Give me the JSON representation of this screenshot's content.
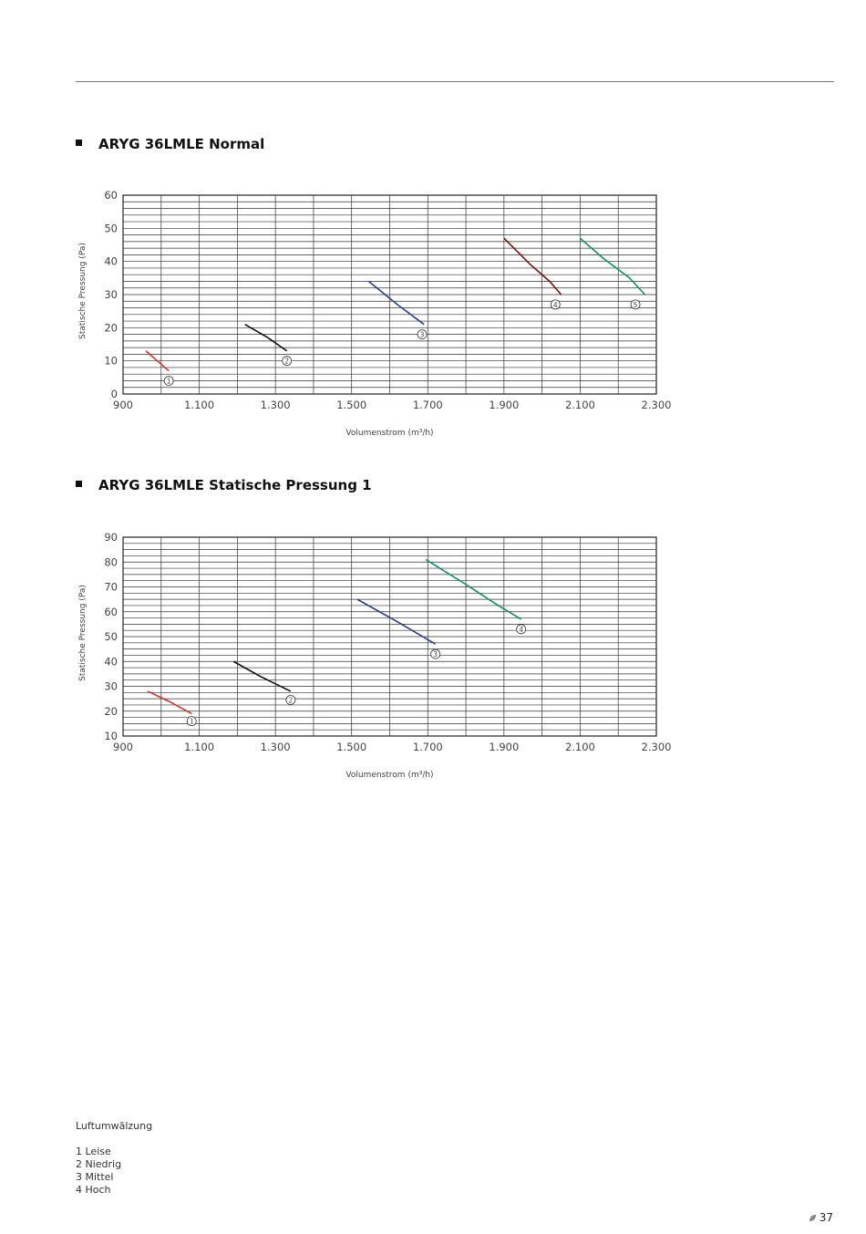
{
  "page": {
    "number": "37",
    "leaf_icon": "leaf-icon"
  },
  "headings": [
    "ARYG 36LMLE Normal",
    "ARYG 36LMLE Statische Pressung 1"
  ],
  "legend": {
    "title": "Luftumwälzung",
    "items": [
      "1 Leise",
      "2 Niedrig",
      "3 Mittel",
      "4 Hoch"
    ]
  },
  "chart_data": [
    {
      "type": "line",
      "title": "ARYG 36LMLE Normal",
      "xlabel": "Volumenstrom (m³/h)",
      "ylabel": "Statische Pressung (Pa)",
      "xlim": [
        900,
        2300
      ],
      "ylim": [
        0,
        60
      ],
      "x_ticks": [
        900,
        1100,
        1300,
        1500,
        1700,
        1900,
        2100,
        2300
      ],
      "x_tick_labels": [
        "900",
        "1.100",
        "1.300",
        "1.500",
        "1.700",
        "1.900",
        "2.100",
        "2.300"
      ],
      "y_ticks": [
        0,
        10,
        20,
        30,
        40,
        50,
        60
      ],
      "y_tick_labels": [
        "0",
        "10",
        "20",
        "30",
        "40",
        "50",
        "60"
      ],
      "y_minor_step": 2,
      "x_grid_step": 100,
      "grid": true,
      "series": [
        {
          "marker": "1",
          "color": "#d9302a",
          "points": [
            [
              960,
              13
            ],
            [
              990,
              10
            ],
            [
              1020,
              7
            ]
          ],
          "label_at": [
            1020,
            4
          ]
        },
        {
          "marker": "2",
          "color": "#111111",
          "points": [
            [
              1220,
              21
            ],
            [
              1280,
              17
            ],
            [
              1330,
              13
            ]
          ],
          "label_at": [
            1330,
            10
          ]
        },
        {
          "marker": "3",
          "color": "#283f8f",
          "points": [
            [
              1545,
              34
            ],
            [
              1620,
              27
            ],
            [
              1690,
              21
            ]
          ],
          "label_at": [
            1685,
            18
          ]
        },
        {
          "marker": "4",
          "color": "#7a1010",
          "points": [
            [
              1900,
              47
            ],
            [
              1970,
              39
            ],
            [
              2020,
              34
            ],
            [
              2050,
              30
            ]
          ],
          "label_at": [
            2035,
            27
          ]
        },
        {
          "marker": "5",
          "color": "#0f9068",
          "points": [
            [
              2100,
              47
            ],
            [
              2160,
              41
            ],
            [
              2230,
              35
            ],
            [
              2270,
              30
            ]
          ],
          "label_at": [
            2245,
            27
          ]
        }
      ]
    },
    {
      "type": "line",
      "title": "ARYG 36LMLE Statische Pressung 1",
      "xlabel": "Volumenstrom (m³/h)",
      "ylabel": "Statische Pressung (Pa)",
      "xlim": [
        900,
        2300
      ],
      "ylim": [
        10,
        90
      ],
      "x_ticks": [
        900,
        1100,
        1300,
        1500,
        1700,
        1900,
        2100,
        2300
      ],
      "x_tick_labels": [
        "900",
        "1.100",
        "1.300",
        "1.500",
        "1.700",
        "1.900",
        "2.100",
        "2.300"
      ],
      "y_ticks": [
        10,
        20,
        30,
        40,
        50,
        60,
        70,
        80,
        90
      ],
      "y_tick_labels": [
        "10",
        "20",
        "30",
        "40",
        "50",
        "60",
        "70",
        "80",
        "90"
      ],
      "y_minor_step": 2.5,
      "x_grid_step": 100,
      "grid": true,
      "series": [
        {
          "marker": "1",
          "color": "#d9302a",
          "points": [
            [
              965,
              28
            ],
            [
              1020,
              24
            ],
            [
              1080,
              19
            ]
          ],
          "label_at": [
            1080,
            16
          ]
        },
        {
          "marker": "2",
          "color": "#111111",
          "points": [
            [
              1190,
              40
            ],
            [
              1260,
              34
            ],
            [
              1340,
              28
            ]
          ],
          "label_at": [
            1340,
            24.5
          ]
        },
        {
          "marker": "3",
          "color": "#283f8f",
          "points": [
            [
              1515,
              65
            ],
            [
              1620,
              56
            ],
            [
              1720,
              47
            ]
          ],
          "label_at": [
            1720,
            43
          ]
        },
        {
          "marker": "4",
          "color": "#0f9068",
          "points": [
            [
              1695,
              81
            ],
            [
              1800,
              71
            ],
            [
              1880,
              63
            ],
            [
              1945,
              57
            ]
          ],
          "label_at": [
            1945,
            53
          ]
        }
      ]
    }
  ]
}
